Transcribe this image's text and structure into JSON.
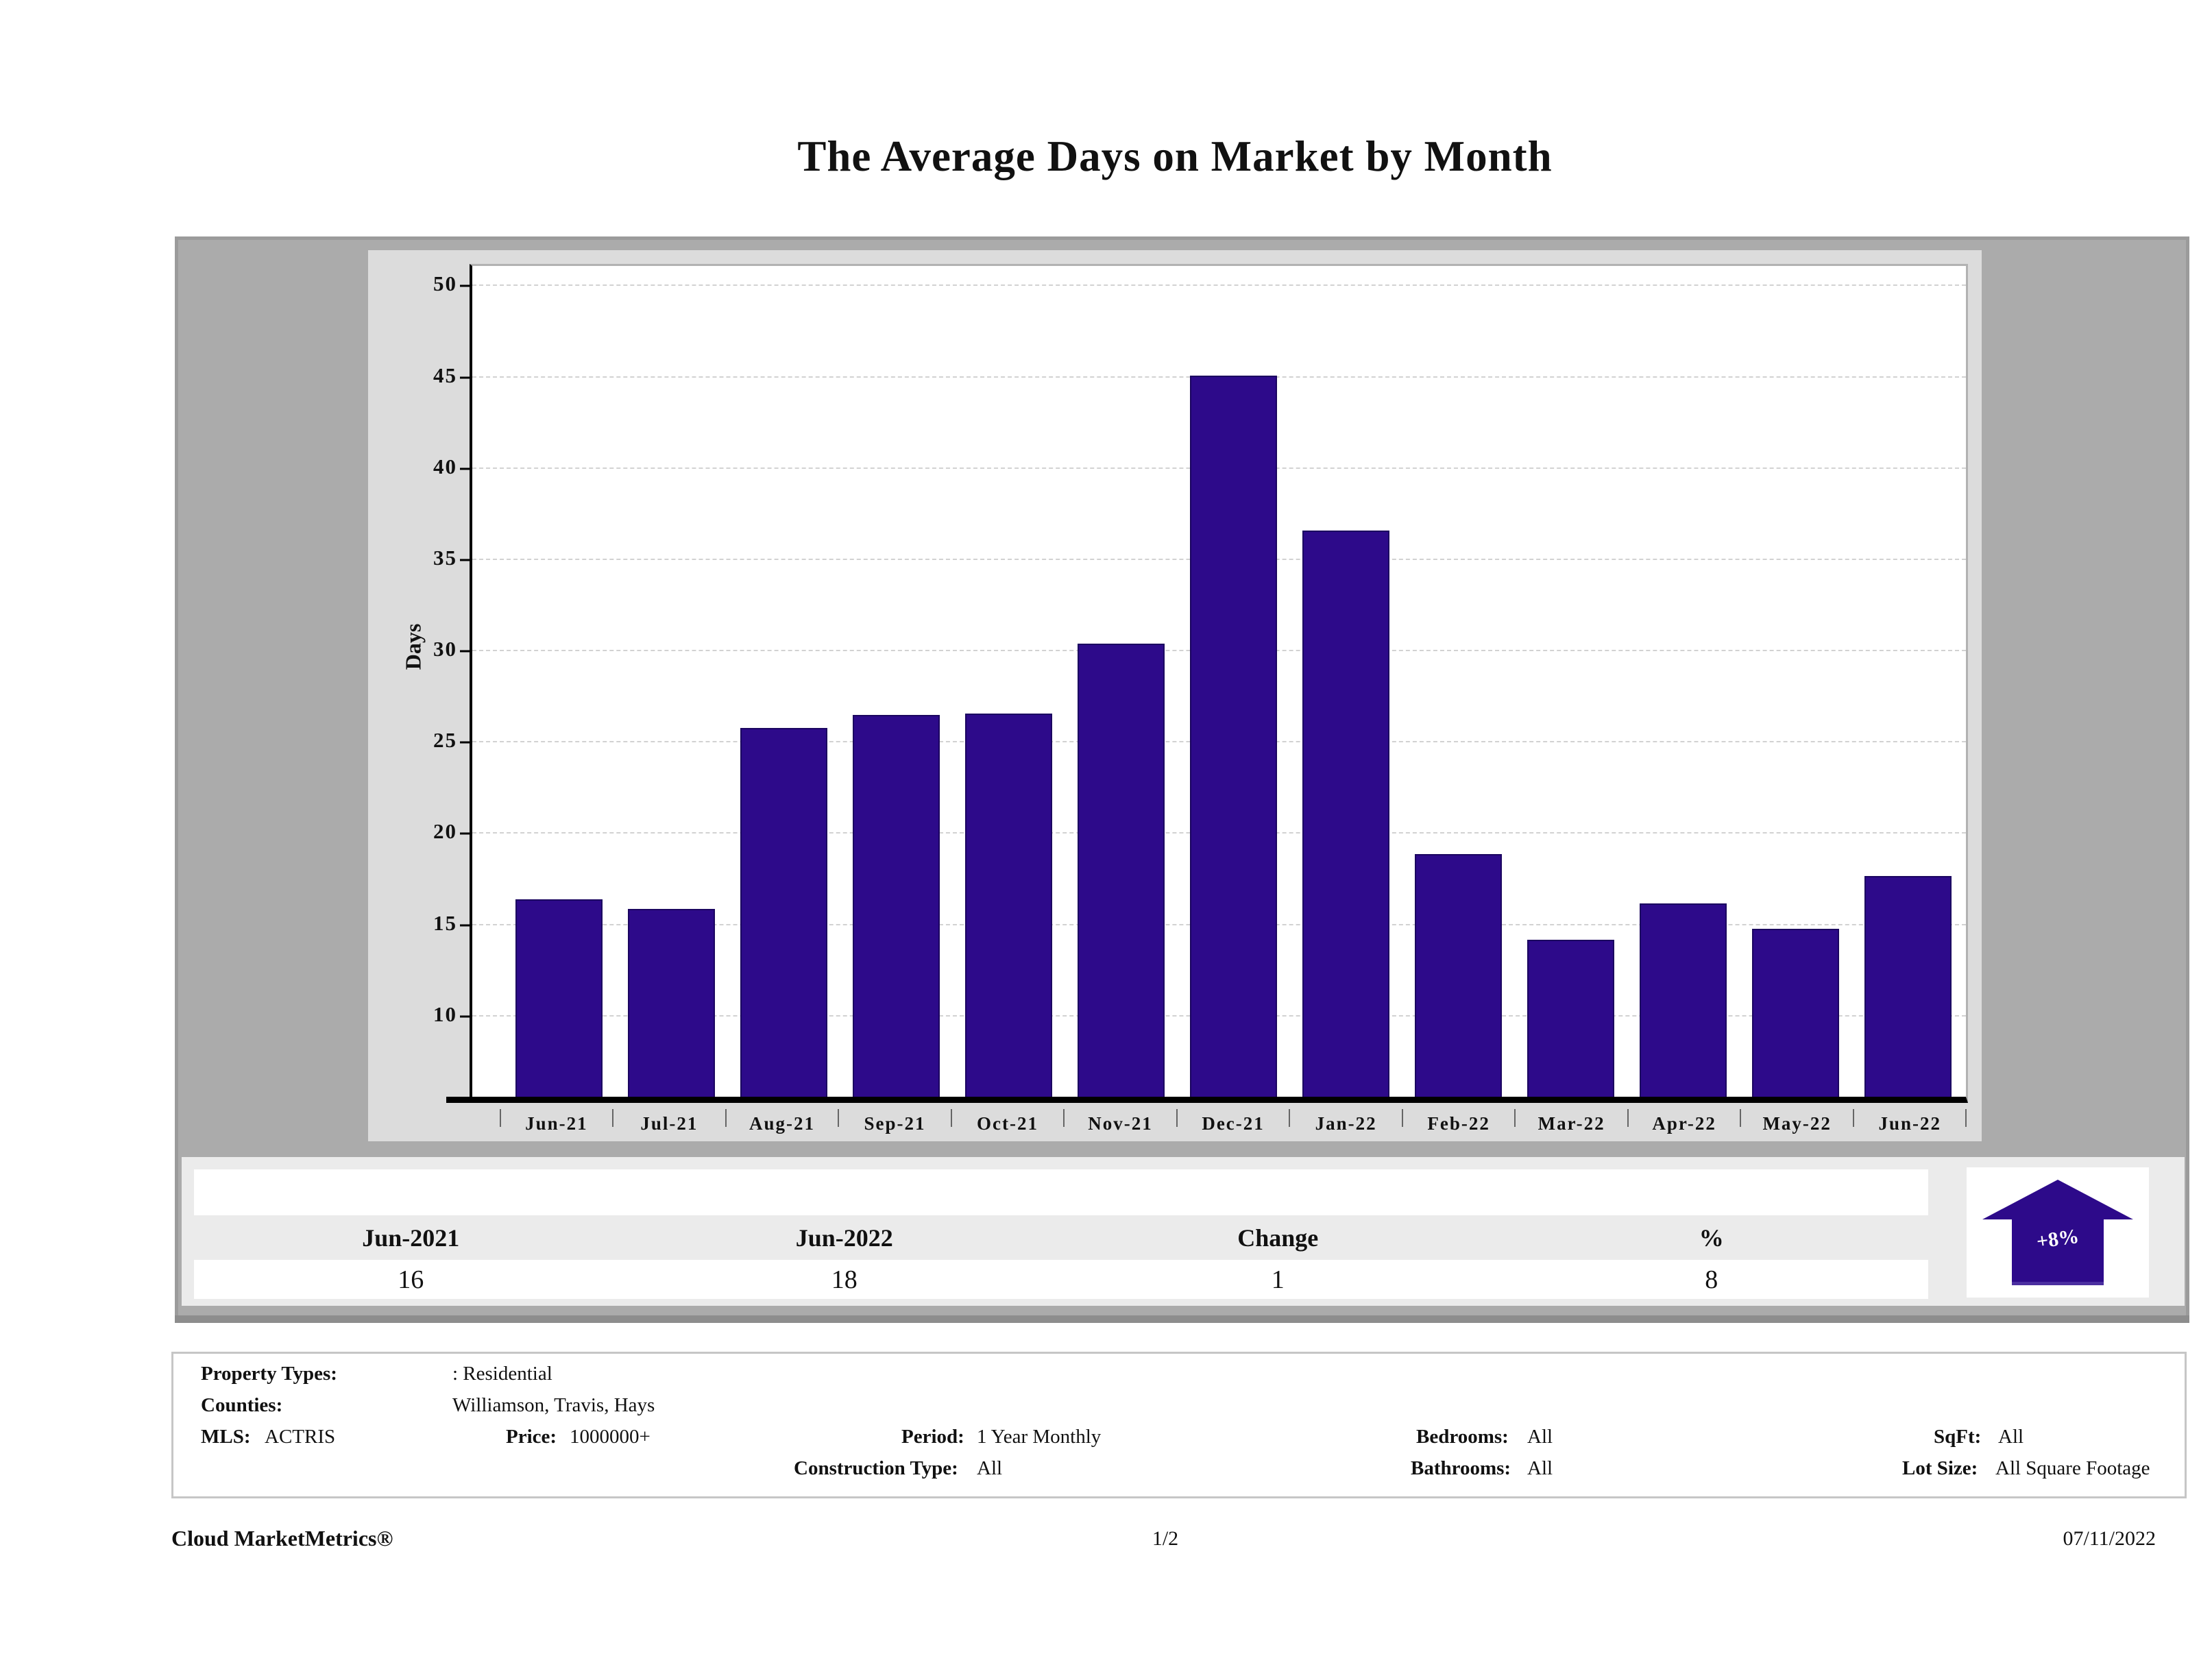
{
  "title": "The Average Days on Market by Month",
  "chart_data": {
    "type": "bar",
    "title": "The Average Days on Market by Month",
    "categories": [
      "Jun-21",
      "Jul-21",
      "Aug-21",
      "Sep-21",
      "Oct-21",
      "Nov-21",
      "Dec-21",
      "Jan-22",
      "Feb-22",
      "Mar-22",
      "Apr-22",
      "May-22",
      "Jun-22"
    ],
    "values": [
      16.4,
      15.9,
      25.8,
      26.5,
      26.6,
      30.4,
      45.1,
      36.6,
      18.9,
      14.2,
      16.2,
      14.8,
      17.7
    ],
    "xlabel": "",
    "ylabel": "Days",
    "yticks": [
      10,
      15,
      20,
      25,
      30,
      35,
      40,
      45,
      50
    ],
    "ylim": [
      5.6,
      51.1
    ],
    "grid": true,
    "legend": false,
    "bar_color": "#2d0a8a",
    "bar_border_color": "#1b0560",
    "gridline_color": "#d2d2d2"
  },
  "summary": {
    "columns": [
      "Jun-2021",
      "Jun-2022",
      "Change",
      "%"
    ],
    "values": [
      "16",
      "18",
      "1",
      "8"
    ],
    "badge": {
      "label": "+8%",
      "direction": "up",
      "color": "#2d0a8a"
    }
  },
  "details": {
    "property_types_label": "Property Types:",
    "property_types_value": ": Residential",
    "counties_label": "Counties:",
    "counties_value": "Williamson, Travis, Hays",
    "mls_label": "MLS:",
    "mls_value": "ACTRIS",
    "price_label": "Price:",
    "price_value": "1000000+",
    "period_label": "Period:",
    "period_value": "1 Year Monthly",
    "construction_label": "Construction Type:",
    "construction_value": "All",
    "bedrooms_label": "Bedrooms:",
    "bedrooms_value": "All",
    "bathrooms_label": "Bathrooms:",
    "bathrooms_value": "All",
    "sqft_label": "SqFt:",
    "sqft_value": "All",
    "lotsize_label": "Lot Size:",
    "lotsize_value": "All Square Footage"
  },
  "page_footer": {
    "brand": "Cloud MarketMetrics®",
    "page_number": "1/2",
    "date": "07/11/2022"
  }
}
